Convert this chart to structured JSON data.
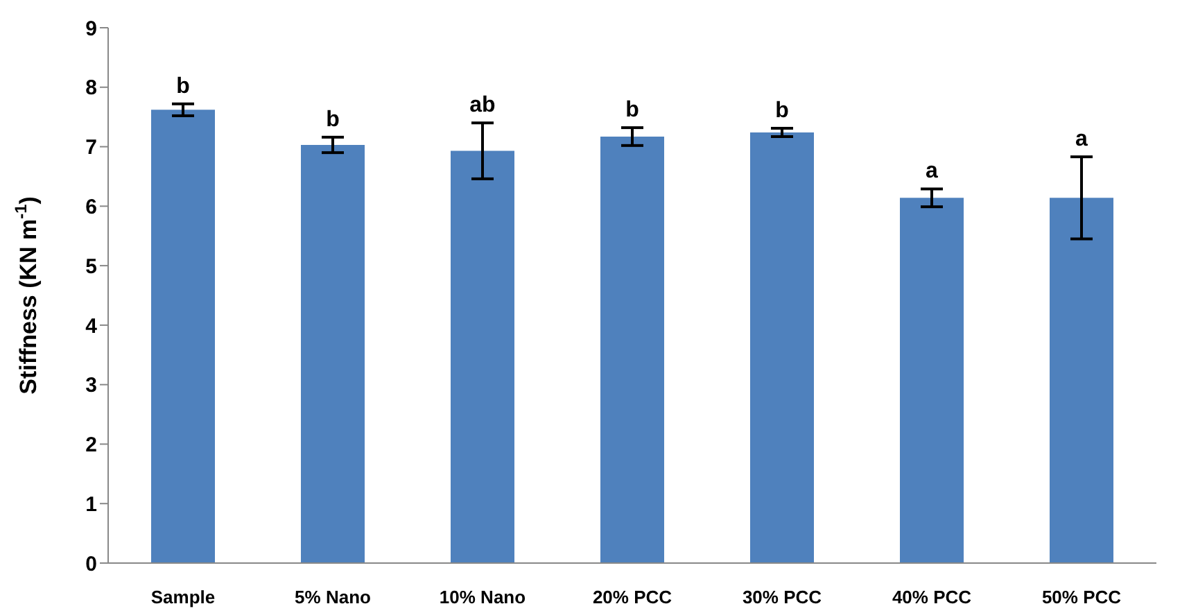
{
  "chart_data": {
    "type": "bar",
    "ylabel": "Stiffness  (KN m$^{-1}$)",
    "categories": [
      "Sample",
      "5% Nano",
      "10% Nano",
      "20% PCC",
      "30% PCC",
      "40% PCC",
      "50% PCC"
    ],
    "values": [
      7.62,
      7.03,
      6.93,
      7.17,
      7.24,
      6.14,
      6.14
    ],
    "errors": [
      0.1,
      0.13,
      0.47,
      0.15,
      0.07,
      0.15,
      0.69
    ],
    "color": "#4f81bd",
    "ylim": [
      0,
      9
    ],
    "yticks": [
      0,
      1,
      2,
      3,
      4,
      5,
      6,
      7,
      8,
      9
    ],
    "grid": false,
    "legend": false,
    "annotations": [
      {
        "text": "b",
        "x": "Sample",
        "y": 7.72
      },
      {
        "text": "b",
        "x": "5% Nano",
        "y": 7.16
      },
      {
        "text": "ab",
        "x": "10% Nano",
        "y": 7.4
      },
      {
        "text": "b",
        "x": "20% PCC",
        "y": 7.32
      },
      {
        "text": "b",
        "x": "30% PCC",
        "y": 7.31
      },
      {
        "text": "a",
        "x": "40% PCC",
        "y": 6.29
      },
      {
        "text": "a",
        "x": "50% PCC",
        "y": 6.83
      }
    ]
  }
}
